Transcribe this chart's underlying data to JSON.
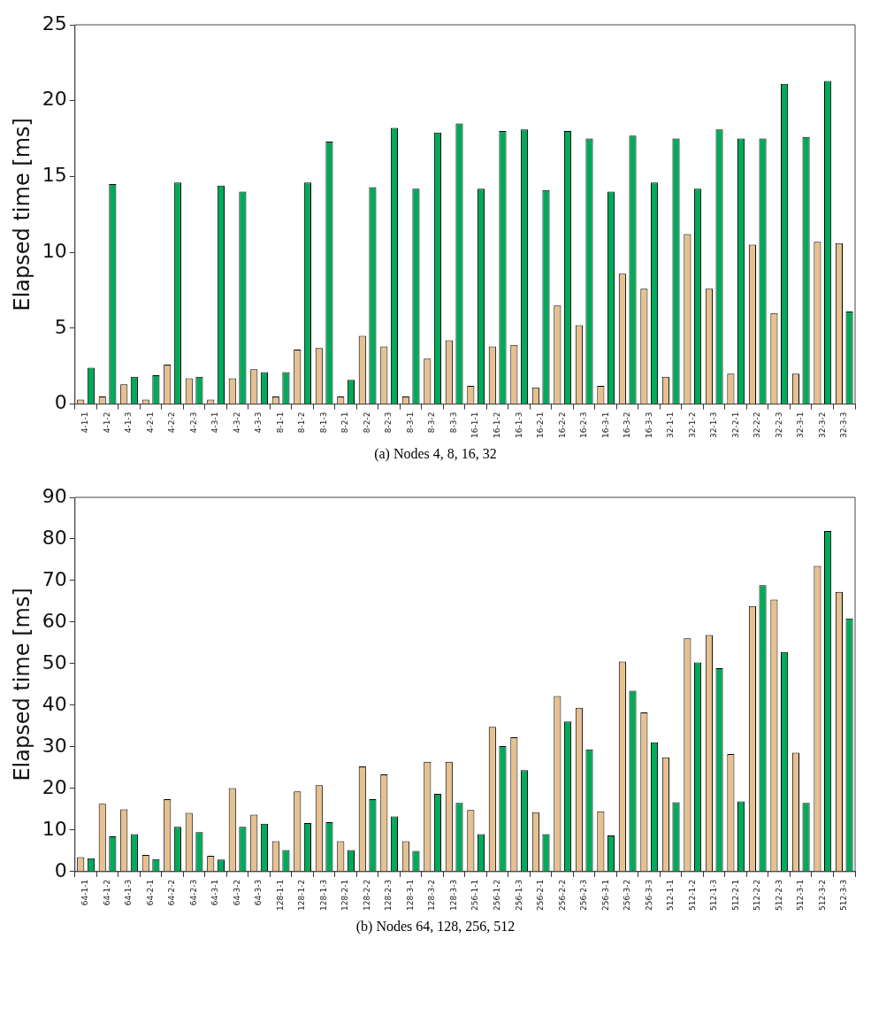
{
  "chart_data": [
    {
      "type": "bar",
      "title": "(a) Nodes 4, 8, 16, 32",
      "ylabel": "Elapsed time [ms]",
      "categories": [
        "4-1-1",
        "4-1-2",
        "4-1-3",
        "4-2-1",
        "4-2-2",
        "4-2-3",
        "4-3-1",
        "4-3-2",
        "4-3-3",
        "8-1-1",
        "8-1-2",
        "8-1-3",
        "8-2-1",
        "8-2-2",
        "8-2-3",
        "8-3-1",
        "8-3-2",
        "8-3-3",
        "16-1-1",
        "16-1-2",
        "16-1-3",
        "16-2-1",
        "16-2-2",
        "16-2-3",
        "16-3-1",
        "16-3-2",
        "16-3-3",
        "32-1-1",
        "32-1-2",
        "32-1-3",
        "32-2-1",
        "32-2-2",
        "32-2-3",
        "32-3-1",
        "32-3-2",
        "32-3-3"
      ],
      "series": [
        {
          "color": "#e6c08f",
          "values": [
            0.3,
            0.5,
            1.3,
            0.3,
            2.6,
            1.7,
            0.3,
            1.7,
            2.3,
            0.5,
            3.6,
            3.7,
            0.5,
            4.5,
            3.8,
            0.5,
            3.0,
            4.2,
            1.2,
            3.8,
            3.9,
            1.1,
            6.5,
            5.2,
            1.2,
            8.6,
            7.6,
            1.8,
            11.2,
            7.6,
            2.0,
            10.5,
            6.0,
            2.0,
            10.7,
            10.6
          ]
        },
        {
          "color": "#00aa5a",
          "values": [
            2.4,
            14.5,
            1.8,
            1.9,
            14.6,
            1.8,
            14.4,
            14.0,
            2.1,
            2.1,
            14.6,
            17.3,
            1.6,
            14.3,
            18.2,
            14.2,
            17.9,
            18.5,
            14.2,
            18.0,
            18.1,
            14.1,
            18.0,
            17.5,
            14.0,
            17.7,
            14.6,
            17.5,
            14.2,
            18.1,
            17.5,
            17.5,
            21.1,
            17.6,
            21.3,
            6.1
          ]
        }
      ],
      "ylim": [
        0,
        25
      ],
      "yticks": [
        0,
        5,
        10,
        15,
        20,
        25
      ],
      "grid": false,
      "legend": false
    },
    {
      "type": "bar",
      "title": "(b) Nodes 64, 128, 256, 512",
      "ylabel": "Elapsed time [ms]",
      "categories": [
        "64-1-1",
        "64-1-2",
        "64-1-3",
        "64-2-1",
        "64-2-2",
        "64-2-3",
        "64-3-1",
        "64-3-2",
        "64-3-3",
        "128-1-1",
        "128-1-2",
        "128-1-3",
        "128-2-1",
        "128-2-2",
        "128-2-3",
        "128-3-1",
        "128-3-2",
        "128-3-3",
        "256-1-1",
        "256-1-2",
        "256-1-3",
        "256-2-1",
        "256-2-2",
        "256-2-3",
        "256-3-1",
        "256-3-2",
        "256-3-3",
        "512-1-1",
        "512-1-2",
        "512-1-3",
        "512-2-1",
        "512-2-2",
        "512-2-3",
        "512-3-1",
        "512-3-2",
        "512-3-3"
      ],
      "series": [
        {
          "color": "#e6c08f",
          "values": [
            3.5,
            16.3,
            15.0,
            4.0,
            17.4,
            14.1,
            3.8,
            20.1,
            13.7,
            7.3,
            19.3,
            20.8,
            7.3,
            25.3,
            23.4,
            7.3,
            26.4,
            26.4,
            14.8,
            34.8,
            32.3,
            14.3,
            42.2,
            39.4,
            14.5,
            50.5,
            38.3,
            27.5,
            56.1,
            56.9,
            28.3,
            63.9,
            65.4,
            28.6,
            73.5,
            67.3
          ]
        },
        {
          "color": "#00aa5a",
          "values": [
            3.2,
            8.5,
            9.0,
            3.0,
            10.8,
            9.5,
            2.9,
            10.8,
            11.5,
            5.2,
            11.7,
            11.9,
            5.2,
            17.4,
            13.3,
            5.0,
            18.7,
            16.5,
            9.0,
            30.2,
            24.4,
            9.0,
            36.1,
            29.4,
            8.7,
            43.5,
            31.1,
            16.7,
            50.3,
            48.9,
            16.9,
            68.9,
            52.8,
            16.5,
            81.9,
            60.9
          ]
        }
      ],
      "ylim": [
        0,
        90
      ],
      "yticks": [
        0,
        10,
        20,
        30,
        40,
        50,
        60,
        70,
        80,
        90
      ],
      "grid": false,
      "legend": false
    }
  ]
}
